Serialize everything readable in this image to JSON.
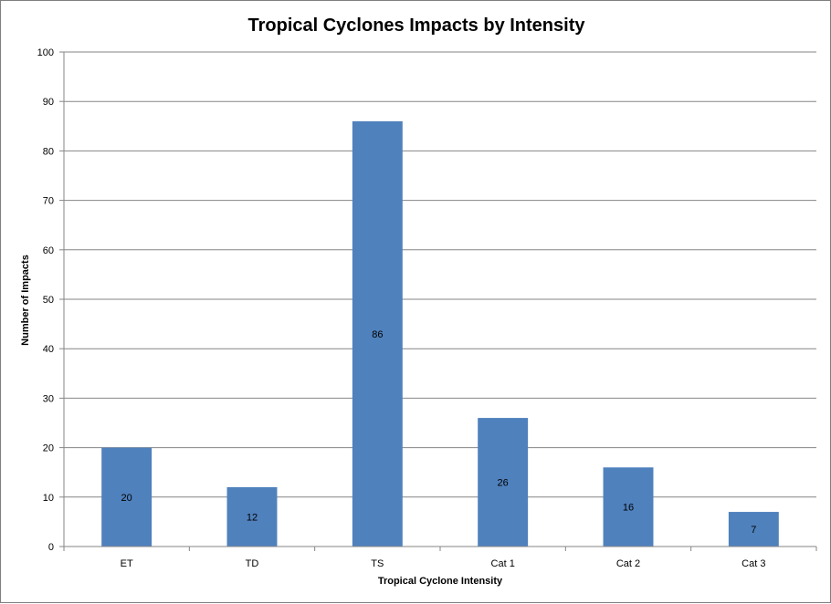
{
  "chart_data": {
    "type": "bar",
    "title": "Tropical Cyclones Impacts by Intensity",
    "xlabel": "Tropical Cyclone Intensity",
    "ylabel": "Number of Impacts",
    "categories": [
      "ET",
      "TD",
      "TS",
      "Cat 1",
      "Cat 2",
      "Cat 3"
    ],
    "values": [
      20,
      12,
      86,
      26,
      16,
      7
    ],
    "ylim": [
      0,
      100
    ],
    "yticks": [
      0,
      10,
      20,
      30,
      40,
      50,
      60,
      70,
      80,
      90,
      100
    ],
    "grid": true,
    "legend": "none",
    "data_labels": true,
    "colors": {
      "bar": "#4f81bd",
      "grid": "#868686",
      "axis": "#868686"
    }
  }
}
